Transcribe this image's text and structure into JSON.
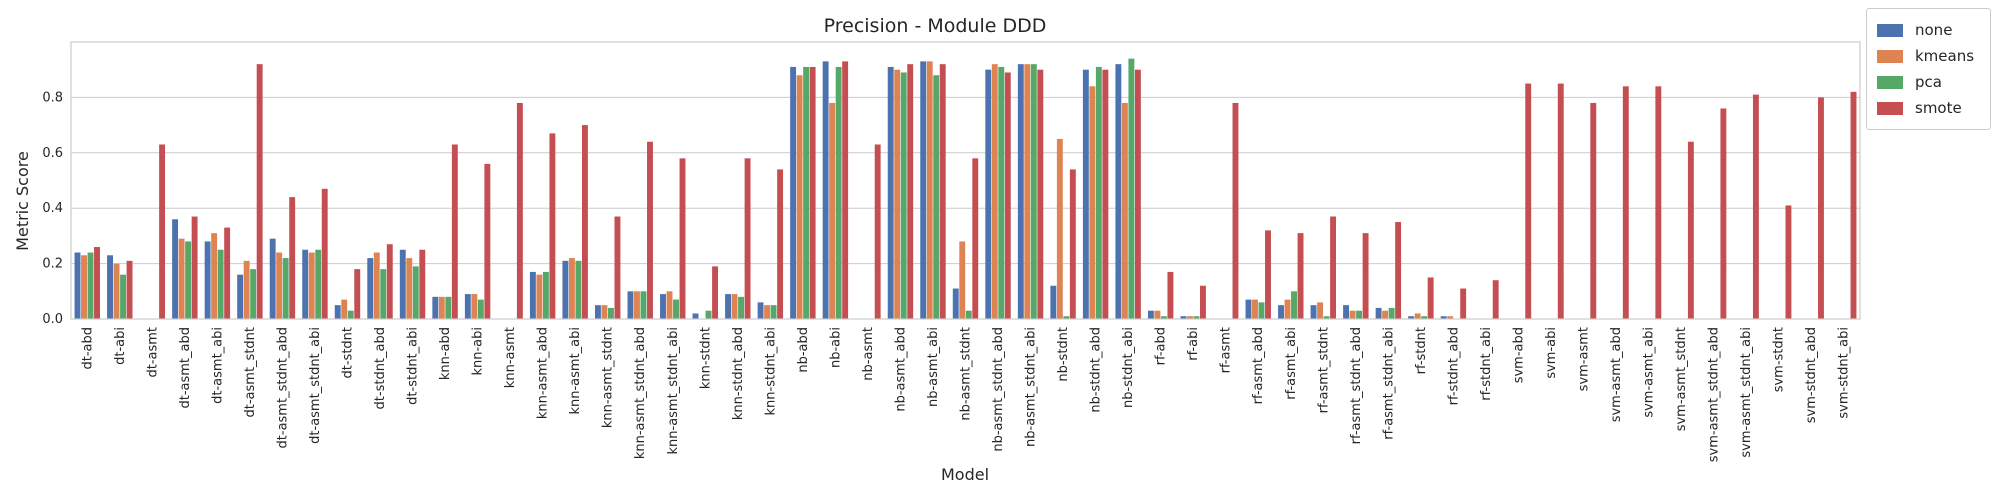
{
  "chart_data": {
    "type": "bar",
    "title": "Precision - Module DDD",
    "xlabel": "Model",
    "ylabel": "Metric Score",
    "ylim": [
      0,
      1.0
    ],
    "yticks": [
      "0.0",
      "0.2",
      "0.4",
      "0.6",
      "0.8"
    ],
    "grid": true,
    "legend_placement": "outside-top-right",
    "categories": [
      "dt-abd",
      "dt-abi",
      "dt-asmt",
      "dt-asmt_abd",
      "dt-asmt_abi",
      "dt-asmt_stdnt",
      "dt-asmt_stdnt_abd",
      "dt-asmt_stdnt_abi",
      "dt-stdnt",
      "dt-stdnt_abd",
      "dt-stdnt_abi",
      "knn-abd",
      "knn-abi",
      "knn-asmt",
      "knn-asmt_abd",
      "knn-asmt_abi",
      "knn-asmt_stdnt",
      "knn-asmt_stdnt_abd",
      "knn-asmt_stdnt_abi",
      "knn-stdnt",
      "knn-stdnt_abd",
      "knn-stdnt_abi",
      "nb-abd",
      "nb-abi",
      "nb-asmt",
      "nb-asmt_abd",
      "nb-asmt_abi",
      "nb-asmt_stdnt",
      "nb-asmt_stdnt_abd",
      "nb-asmt_stdnt_abi",
      "nb-stdnt",
      "nb-stdnt_abd",
      "nb-stdnt_abi",
      "rf-abd",
      "rf-abi",
      "rf-asmt",
      "rf-asmt_abd",
      "rf-asmt_abi",
      "rf-asmt_stdnt",
      "rf-asmt_stdnt_abd",
      "rf-asmt_stdnt_abi",
      "rf-stdnt",
      "rf-stdnt_abd",
      "rf-stdnt_abi",
      "svm-abd",
      "svm-abi",
      "svm-asmt",
      "svm-asmt_abd",
      "svm-asmt_abi",
      "svm-asmt_stdnt",
      "svm-asmt_stdnt_abd",
      "svm-asmt_stdnt_abi",
      "svm-stdnt",
      "svm-stdnt_abd",
      "svm-stdnt_abi"
    ],
    "series": [
      {
        "name": "none",
        "color": "#4c72b0",
        "values": [
          0.24,
          0.23,
          0,
          0.36,
          0.28,
          0.16,
          0.29,
          0.25,
          0.05,
          0.22,
          0.25,
          0.08,
          0.09,
          0,
          0.17,
          0.21,
          0.05,
          0.1,
          0.09,
          0.02,
          0.09,
          0.06,
          0.91,
          0.93,
          0,
          0.91,
          0.93,
          0.11,
          0.9,
          0.92,
          0.12,
          0.9,
          0.92,
          0.03,
          0.01,
          0,
          0.07,
          0.05,
          0.05,
          0.05,
          0.04,
          0.01,
          0.01,
          0,
          0,
          0,
          0,
          0,
          0,
          0,
          0,
          0,
          0,
          0,
          0
        ]
      },
      {
        "name": "kmeans",
        "color": "#dd8452",
        "values": [
          0.23,
          0.2,
          0,
          0.29,
          0.31,
          0.21,
          0.24,
          0.24,
          0.07,
          0.24,
          0.22,
          0.08,
          0.09,
          0,
          0.16,
          0.22,
          0.05,
          0.1,
          0.1,
          0,
          0.09,
          0.05,
          0.88,
          0.78,
          0,
          0.9,
          0.93,
          0.28,
          0.92,
          0.92,
          0.65,
          0.84,
          0.78,
          0.03,
          0.01,
          0,
          0.07,
          0.07,
          0.06,
          0.03,
          0.03,
          0.02,
          0.01,
          0,
          0,
          0,
          0,
          0,
          0,
          0,
          0,
          0,
          0,
          0,
          0
        ]
      },
      {
        "name": "pca",
        "color": "#55a868",
        "values": [
          0.24,
          0.16,
          0,
          0.28,
          0.25,
          0.18,
          0.22,
          0.25,
          0.03,
          0.18,
          0.19,
          0.08,
          0.07,
          0,
          0.17,
          0.21,
          0.04,
          0.1,
          0.07,
          0.03,
          0.08,
          0.05,
          0.91,
          0.91,
          0,
          0.89,
          0.88,
          0.03,
          0.91,
          0.92,
          0.01,
          0.91,
          0.94,
          0.01,
          0.01,
          0,
          0.06,
          0.1,
          0.01,
          0.03,
          0.04,
          0.01,
          0,
          0,
          0,
          0,
          0,
          0,
          0,
          0,
          0,
          0,
          0,
          0,
          0
        ]
      },
      {
        "name": "smote",
        "color": "#c44e52",
        "values": [
          0.26,
          0.21,
          0.63,
          0.37,
          0.33,
          0.92,
          0.44,
          0.47,
          0.18,
          0.27,
          0.25,
          0.63,
          0.56,
          0.78,
          0.67,
          0.7,
          0.37,
          0.64,
          0.58,
          0.19,
          0.58,
          0.54,
          0.91,
          0.93,
          0.63,
          0.92,
          0.92,
          0.58,
          0.89,
          0.9,
          0.54,
          0.9,
          0.9,
          0.17,
          0.12,
          0.78,
          0.32,
          0.31,
          0.37,
          0.31,
          0.35,
          0.15,
          0.11,
          0.14,
          0.85,
          0.85,
          0.78,
          0.84,
          0.84,
          0.64,
          0.76,
          0.81,
          0.41,
          0.8,
          0.82
        ]
      }
    ]
  }
}
